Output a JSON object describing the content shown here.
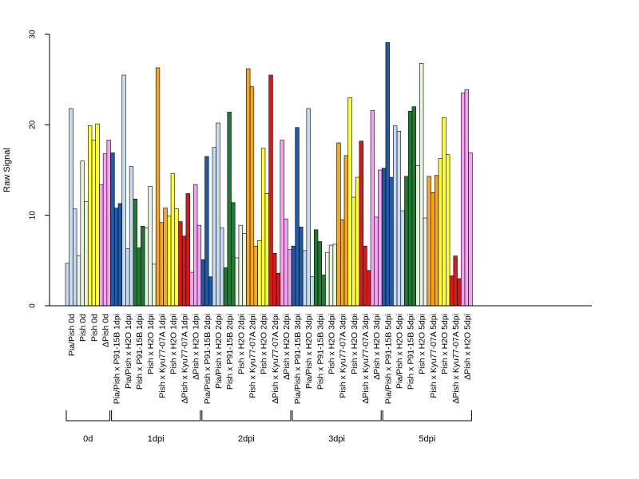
{
  "chart_data": {
    "type": "bar",
    "title": "",
    "xlabel": "",
    "ylabel": "Raw Signal",
    "ylim": [
      0,
      30
    ],
    "yticks": [
      0,
      10,
      20,
      30
    ],
    "grid": false,
    "legend": "none",
    "colors": {
      "Pia/Pish": "#c6dbef",
      "Pia/Pish x P91-15B": "#1f5aa6",
      "Pia/Pish x H2O": "#c6dbef",
      "Pish x P91-15B": "#217a33",
      "Pish": "#e6f4e1",
      "Pish x H2O": "#e6f4e1",
      "Pish x Kyu77-07A": "#f5a623",
      "Pia": "#ffff33",
      "ΔPish x Kyu77-07A": "#d7191c",
      "ΔPish": "#f6a3f2",
      "ΔPish x H2O": "#f6a3f2"
    },
    "bars": [
      {
        "label": "Pia/Pish 0d",
        "key": "Pia/Pish",
        "values": [
          4.7,
          21.8,
          10.7
        ]
      },
      {
        "label": "Pish 0d",
        "key": "Pish",
        "values": [
          5.5,
          16.0,
          11.5
        ]
      },
      {
        "label": "Pish 0d",
        "key": "Pia",
        "values": [
          19.9,
          18.3,
          20.1
        ]
      },
      {
        "label": "ΔPish 0d",
        "key": "ΔPish",
        "values": [
          13.4,
          16.8,
          18.3
        ]
      },
      {
        "label": "Pia/Pish x P91-15B 1dpi",
        "key": "Pia/Pish x P91-15B",
        "values": [
          16.9,
          10.8,
          11.3
        ]
      },
      {
        "label": "Pia/Pish x H2O 1dpi",
        "key": "Pia/Pish x H2O",
        "values": [
          25.5,
          6.3,
          15.4
        ]
      },
      {
        "label": "Pish x P91-15B 1dpi",
        "key": "Pish x P91-15B",
        "values": [
          11.8,
          6.4,
          8.8
        ]
      },
      {
        "label": "Pish x H2O 1dpi",
        "key": "Pish x H2O",
        "values": [
          8.6,
          13.2,
          4.6
        ]
      },
      {
        "label": "Pish x Kyu77-07A 1dpi",
        "key": "Pish x Kyu77-07A",
        "values": [
          26.3,
          9.2,
          10.8
        ]
      },
      {
        "label": "Pish x H2O 1dpi",
        "key": "Pia",
        "values": [
          9.9,
          14.6,
          10.7
        ]
      },
      {
        "label": "ΔPish x Kyu77-07A 1dpi",
        "key": "ΔPish x Kyu77-07A",
        "values": [
          9.3,
          7.7,
          12.4
        ]
      },
      {
        "label": "ΔPish x H2O 1dpi",
        "key": "ΔPish x H2O",
        "values": [
          3.7,
          13.4,
          8.9
        ]
      },
      {
        "label": "Pia/Pish x P91-15B 2dpi",
        "key": "Pia/Pish x P91-15B",
        "values": [
          5.1,
          16.5,
          3.2
        ]
      },
      {
        "label": "Pia/Pish x H2O 2dpi",
        "key": "Pia/Pish x H2O",
        "values": [
          17.5,
          20.2,
          8.6
        ]
      },
      {
        "label": "Pish x P91-15B 2dpi",
        "key": "Pish x P91-15B",
        "values": [
          4.2,
          21.4,
          11.4
        ]
      },
      {
        "label": "Pish x H2O 2dpi",
        "key": "Pish x H2O",
        "values": [
          5.3,
          8.9,
          8.0
        ]
      },
      {
        "label": "Pish x Kyu77-07A 2dpi",
        "key": "Pish x Kyu77-07A",
        "values": [
          26.2,
          24.2,
          6.6
        ]
      },
      {
        "label": "Pish x H2O 2dpi",
        "key": "Pia",
        "values": [
          7.2,
          17.4,
          12.4
        ]
      },
      {
        "label": "ΔPish x Kyu77-07A 2dpi",
        "key": "ΔPish x Kyu77-07A",
        "values": [
          25.5,
          5.8,
          3.6
        ]
      },
      {
        "label": "ΔPish x H2O 2dpi",
        "key": "ΔPish x H2O",
        "values": [
          18.3,
          9.6,
          6.2
        ]
      },
      {
        "label": "Pia/Pish x P91-15B 3dpi",
        "key": "Pia/Pish x P91-15B",
        "values": [
          6.6,
          19.7,
          8.7
        ]
      },
      {
        "label": "Pia/Pish x H2O 3dpi",
        "key": "Pia/Pish x H2O",
        "values": [
          6.1,
          21.8,
          3.2
        ]
      },
      {
        "label": "Pish x P91-15B 3dpi",
        "key": "Pish x P91-15B",
        "values": [
          8.4,
          7.1,
          3.4
        ]
      },
      {
        "label": "Pish x H2O 3dpi",
        "key": "Pish x H2O",
        "values": [
          5.9,
          6.7,
          6.8
        ]
      },
      {
        "label": "Pish x Kyu77-07A 3dpi",
        "key": "Pish x Kyu77-07A",
        "values": [
          18.0,
          9.5,
          16.6
        ]
      },
      {
        "label": "Pish x H2O 3dpi",
        "key": "Pia",
        "values": [
          23.0,
          12.0,
          14.2
        ]
      },
      {
        "label": "ΔPish x Kyu77-07A 3dpi",
        "key": "ΔPish x Kyu77-07A",
        "values": [
          18.2,
          6.6,
          3.9
        ]
      },
      {
        "label": "ΔPish x H2O 3dpi",
        "key": "ΔPish x H2O",
        "values": [
          21.6,
          9.8,
          15.0
        ]
      },
      {
        "label": "Pia/Pish x P91-15B 5dpi",
        "key": "Pia/Pish x P91-15B",
        "values": [
          15.2,
          29.1,
          14.2
        ]
      },
      {
        "label": "Pia/Pish x H2O 5dpi",
        "key": "Pia/Pish x H2O",
        "values": [
          19.9,
          19.3,
          10.5
        ]
      },
      {
        "label": "Pish x P91-15B 5dpi",
        "key": "Pish x P91-15B",
        "values": [
          14.3,
          21.5,
          22.0
        ]
      },
      {
        "label": "Pish x H2O 5dpi",
        "key": "Pish x H2O",
        "values": [
          15.5,
          26.8,
          9.7
        ]
      },
      {
        "label": "Pish x Kyu77-07A 5dpi",
        "key": "Pish x Kyu77-07A",
        "values": [
          14.3,
          12.5,
          14.4
        ]
      },
      {
        "label": "Pish x H2O 5dpi",
        "key": "Pia",
        "values": [
          16.3,
          20.8,
          16.7
        ]
      },
      {
        "label": "ΔPish x Kyu77-07A 5dpi",
        "key": "ΔPish x Kyu77-07A",
        "values": [
          3.3,
          5.5,
          3.0
        ]
      },
      {
        "label": "ΔPish x H2O 5dpi",
        "key": "ΔPish x H2O",
        "values": [
          23.5,
          23.9,
          16.9
        ]
      }
    ],
    "groups": [
      {
        "label": "0d",
        "start": 0,
        "end": 3
      },
      {
        "label": "1dpi",
        "start": 4,
        "end": 11
      },
      {
        "label": "2dpi",
        "start": 12,
        "end": 19
      },
      {
        "label": "3dpi",
        "start": 20,
        "end": 27
      },
      {
        "label": "5dpi",
        "start": 28,
        "end": 35
      }
    ]
  }
}
